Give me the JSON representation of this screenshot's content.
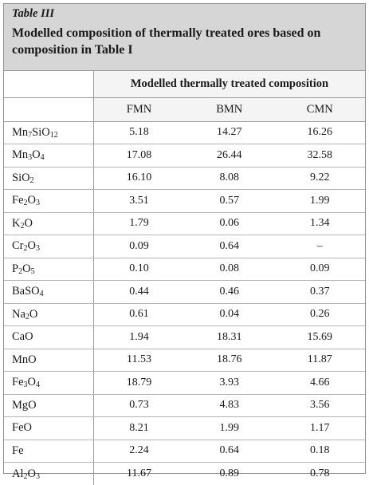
{
  "caption": {
    "label": "Table III",
    "title": "Modelled composition of thermally treated ores based on composition in Table I"
  },
  "table": {
    "group_header": "Modelled thermally treated composition",
    "columns": [
      "FMN",
      "BMN",
      "CMN"
    ],
    "rows": [
      {
        "compound": "Mn7SiO12",
        "values": [
          "5.18",
          "14.27",
          "16.26"
        ]
      },
      {
        "compound": "Mn3O4",
        "values": [
          "17.08",
          "26.44",
          "32.58"
        ]
      },
      {
        "compound": "SiO2",
        "values": [
          "16.10",
          "8.08",
          "9.22"
        ]
      },
      {
        "compound": "Fe2O3",
        "values": [
          "3.51",
          "0.57",
          "1.99"
        ]
      },
      {
        "compound": "K2O",
        "values": [
          "1.79",
          "0.06",
          "1.34"
        ]
      },
      {
        "compound": "Cr2O3",
        "values": [
          "0.09",
          "0.64",
          "–"
        ]
      },
      {
        "compound": "P2O5",
        "values": [
          "0.10",
          "0.08",
          "0.09"
        ]
      },
      {
        "compound": "BaSO4",
        "values": [
          "0.44",
          "0.46",
          "0.37"
        ]
      },
      {
        "compound": "Na2O",
        "values": [
          "0.61",
          "0.04",
          "0.26"
        ]
      },
      {
        "compound": "CaO",
        "values": [
          "1.94",
          "18.31",
          "15.69"
        ]
      },
      {
        "compound": "MnO",
        "values": [
          "11.53",
          "18.76",
          "11.87"
        ]
      },
      {
        "compound": "Fe3O4",
        "values": [
          "18.79",
          "3.93",
          "4.66"
        ]
      },
      {
        "compound": "MgO",
        "values": [
          "0.73",
          "4.83",
          "3.56"
        ]
      },
      {
        "compound": "FeO",
        "values": [
          "8.21",
          "1.99",
          "1.17"
        ]
      },
      {
        "compound": "Fe",
        "values": [
          "2.24",
          "0.64",
          "0.18"
        ]
      },
      {
        "compound": "Al2O3",
        "values": [
          "11.67",
          "0.89",
          "0.78"
        ]
      }
    ]
  }
}
